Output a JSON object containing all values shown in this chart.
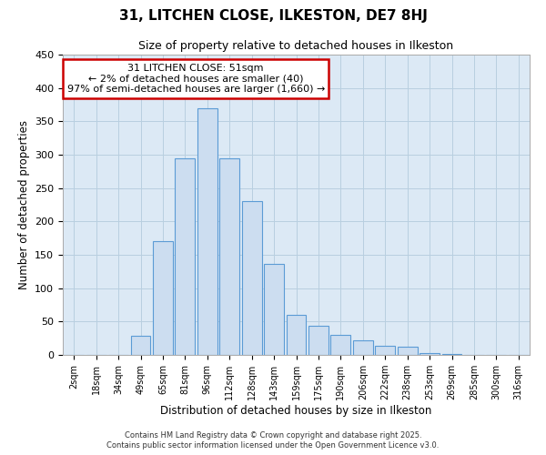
{
  "title": "31, LITCHEN CLOSE, ILKESTON, DE7 8HJ",
  "subtitle": "Size of property relative to detached houses in Ilkeston",
  "xlabel": "Distribution of detached houses by size in Ilkeston",
  "ylabel": "Number of detached properties",
  "bar_color": "#ccddf0",
  "bar_edge_color": "#5b9bd5",
  "background_color": "#ffffff",
  "plot_bg_color": "#dce9f5",
  "grid_color": "#b8cfe0",
  "annotation_box_color": "#ffffff",
  "annotation_box_edge": "#cc0000",
  "categories": [
    "2sqm",
    "18sqm",
    "34sqm",
    "49sqm",
    "65sqm",
    "81sqm",
    "96sqm",
    "112sqm",
    "128sqm",
    "143sqm",
    "159sqm",
    "175sqm",
    "190sqm",
    "206sqm",
    "222sqm",
    "238sqm",
    "253sqm",
    "269sqm",
    "285sqm",
    "300sqm",
    "316sqm"
  ],
  "values": [
    0,
    0,
    0,
    28,
    170,
    295,
    370,
    295,
    230,
    137,
    60,
    43,
    30,
    22,
    14,
    12,
    3,
    1,
    0,
    0,
    0
  ],
  "annotation_title": "31 LITCHEN CLOSE: 51sqm",
  "annotation_line1": "← 2% of detached houses are smaller (40)",
  "annotation_line2": "97% of semi-detached houses are larger (1,660) →",
  "ylim": [
    0,
    450
  ],
  "yticks": [
    0,
    50,
    100,
    150,
    200,
    250,
    300,
    350,
    400,
    450
  ],
  "footer1": "Contains HM Land Registry data © Crown copyright and database right 2025.",
  "footer2": "Contains public sector information licensed under the Open Government Licence v3.0."
}
